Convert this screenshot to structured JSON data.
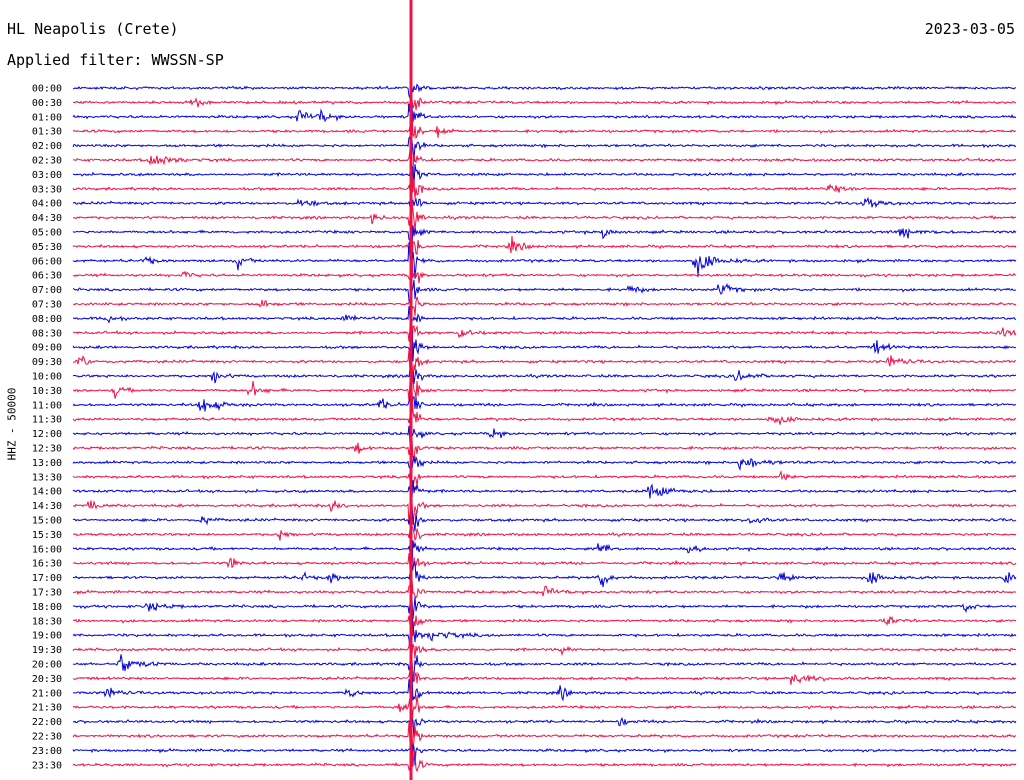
{
  "chart_data": {
    "type": "line",
    "title": "HL Neapolis (Crete)",
    "subtitle": "Applied filter: WWSSN-SP",
    "date": "2023-03-05",
    "ylabel": "HHZ - 50000",
    "xlabel": "",
    "row_labels": [
      "00:00",
      "00:30",
      "01:00",
      "01:30",
      "02:00",
      "02:30",
      "03:00",
      "03:30",
      "04:00",
      "04:30",
      "05:00",
      "05:30",
      "06:00",
      "06:30",
      "07:00",
      "07:30",
      "08:00",
      "08:30",
      "09:00",
      "09:30",
      "10:00",
      "10:30",
      "11:00",
      "11:30",
      "12:00",
      "12:30",
      "13:00",
      "13:30",
      "14:00",
      "14:30",
      "15:00",
      "15:30",
      "16:00",
      "16:30",
      "17:00",
      "17:30",
      "18:00",
      "18:30",
      "19:00",
      "19:30",
      "20:00",
      "20:30",
      "21:00",
      "21:30",
      "22:00",
      "22:30",
      "23:00",
      "23:30"
    ],
    "row_minutes": 30,
    "colors": [
      "#0000dd",
      "#ee1144"
    ],
    "grid": false,
    "legend": "none"
  }
}
